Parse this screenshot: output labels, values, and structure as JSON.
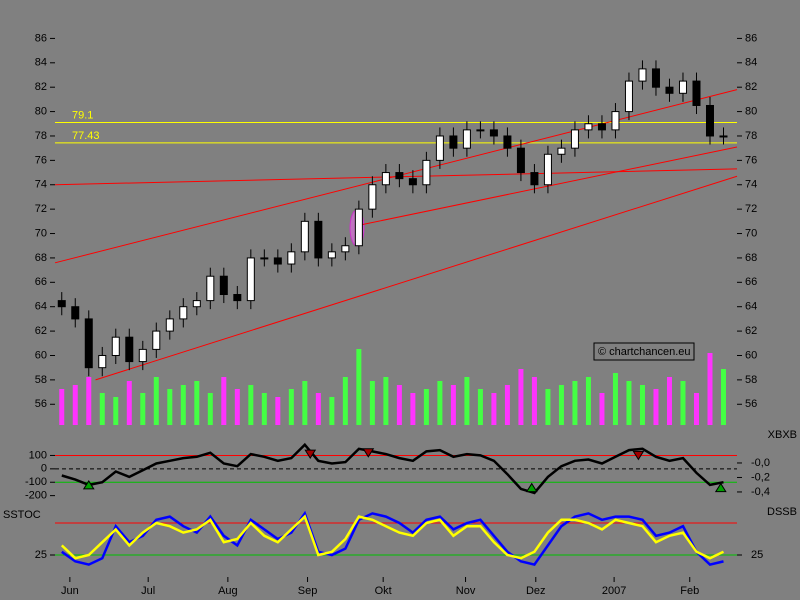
{
  "chart_data": [
    {
      "type": "candlestick",
      "xlim": [
        -0.5,
        50
      ],
      "xticks": [
        {
          "value": 0.6,
          "label": "Jun"
        },
        {
          "value": 6.4,
          "label": "Jul"
        },
        {
          "value": 12.3,
          "label": "Aug"
        },
        {
          "value": 18.2,
          "label": "Sep"
        },
        {
          "value": 23.8,
          "label": "Okt"
        },
        {
          "value": 29.9,
          "label": "Nov"
        },
        {
          "value": 35.1,
          "label": "Dez"
        },
        {
          "value": 40.9,
          "label": "2007"
        },
        {
          "value": 46.5,
          "label": "Feb"
        }
      ],
      "ylim": [
        54.3,
        87.1
      ],
      "yticks": [
        56,
        58,
        60,
        62,
        64,
        66,
        68,
        70,
        72,
        74,
        76,
        78,
        80,
        82,
        84,
        86
      ],
      "open": [
        64.5,
        64,
        63,
        59,
        60,
        61.5,
        59.5,
        60.5,
        62,
        63,
        64,
        64.5,
        66.5,
        65,
        64.5,
        68,
        68,
        67.5,
        68.5,
        71,
        68,
        68.5,
        69,
        72,
        74,
        75,
        74.5,
        74,
        76,
        78,
        77,
        78.5,
        78.5,
        78,
        77,
        75,
        74,
        76.5,
        77,
        78.5,
        79,
        78.5,
        80,
        82.5,
        83.5,
        82,
        81.5,
        82.5,
        80.5,
        78
      ],
      "high": [
        65.2,
        64.7,
        63.7,
        60.7,
        62.2,
        62.2,
        61.2,
        62.7,
        63.7,
        64.7,
        65.2,
        67.2,
        67.2,
        65.7,
        68.7,
        68.7,
        68.7,
        69.2,
        71.7,
        71.7,
        69.2,
        69.7,
        72.7,
        74.7,
        75.7,
        75.7,
        75.2,
        76.7,
        78.7,
        78.7,
        79.2,
        79.2,
        79.2,
        78.7,
        77.7,
        75.7,
        77.2,
        77.7,
        79.2,
        79.7,
        79.7,
        80.7,
        83.2,
        84.2,
        84.2,
        82.7,
        83.2,
        83.2,
        81.2,
        78.7
      ],
      "low": [
        63.3,
        62.3,
        58.3,
        58.3,
        59.3,
        58.8,
        58.8,
        59.8,
        61.3,
        62.3,
        63.3,
        63.8,
        64.3,
        63.8,
        63.8,
        67.3,
        66.8,
        66.8,
        67.8,
        67.3,
        67.3,
        67.8,
        68.3,
        71.3,
        73.3,
        73.8,
        73.3,
        73.3,
        75.3,
        76.3,
        76.3,
        77.8,
        77.3,
        76.3,
        74.3,
        73.3,
        73.3,
        75.8,
        76.3,
        77.8,
        77.8,
        77.8,
        79.3,
        81.8,
        81.3,
        80.8,
        80.8,
        79.8,
        77.3,
        77.3
      ],
      "close": [
        64,
        63,
        59,
        60,
        61.5,
        59.5,
        60.5,
        62,
        63,
        64,
        64.5,
        66.5,
        65,
        64.5,
        68,
        68,
        67.5,
        68.5,
        71,
        68,
        68.5,
        69,
        72,
        74,
        75,
        74.5,
        74,
        76,
        78,
        77,
        78.5,
        78.5,
        78,
        77,
        75,
        74,
        76.5,
        77,
        78.5,
        79,
        78.5,
        80,
        82.5,
        83.5,
        82,
        81.5,
        82.5,
        80.5,
        78,
        78
      ],
      "volume": [
        45,
        50,
        60,
        40,
        35,
        55,
        40,
        60,
        45,
        50,
        55,
        40,
        60,
        45,
        50,
        40,
        35,
        45,
        55,
        40,
        35,
        60,
        95,
        55,
        60,
        50,
        40,
        45,
        55,
        50,
        60,
        45,
        40,
        50,
        70,
        60,
        45,
        50,
        55,
        60,
        40,
        65,
        55,
        50,
        45,
        60,
        55,
        40,
        90,
        70
      ],
      "volume_lim": [
        0,
        500
      ],
      "up_color": "#ffffff",
      "down_color": "#000000",
      "volume_up_color": "#44ff44",
      "volume_down_color": "#ff33ff",
      "levels": [
        79.1,
        77.43
      ],
      "level_color": "#ffff00",
      "trendlines": [
        {
          "x": [
            -0.5,
            50
          ],
          "y": [
            67.6,
            81.8
          ]
        },
        {
          "x": [
            -0.5,
            50
          ],
          "y": [
            74.0,
            75.3
          ]
        },
        {
          "x": [
            2.5,
            50
          ],
          "y": [
            58.0,
            74.7
          ]
        },
        {
          "x": [
            22.1,
            50
          ],
          "y": [
            70.7,
            77.1
          ]
        }
      ],
      "trend_color": "#ff0000",
      "watermark": "© chartchancen.eu"
    },
    {
      "type": "line",
      "ylim": [
        -270,
        290
      ],
      "yticks": [
        100,
        0,
        -100,
        -200
      ],
      "y2lim": [
        -0.58,
        0.455
      ],
      "y2ticks": [
        {
          "value": 0,
          "label": "-0,0"
        },
        {
          "value": -0.2,
          "label": "-0,2"
        },
        {
          "value": -0.4,
          "label": "-0,4"
        }
      ],
      "y2label": "XBXB",
      "levels": [
        {
          "value": 100,
          "color": "#ff0000"
        },
        {
          "value": 0,
          "color": "#000000",
          "dash": true
        },
        {
          "value": -100,
          "color": "#00c000"
        }
      ],
      "series": [
        {
          "color": "#000000",
          "values": [
            -50,
            -80,
            -120,
            -100,
            -20,
            -60,
            -10,
            40,
            60,
            80,
            90,
            120,
            40,
            20,
            110,
            90,
            60,
            80,
            180,
            60,
            40,
            50,
            150,
            130,
            110,
            80,
            60,
            130,
            140,
            90,
            110,
            100,
            60,
            -40,
            -150,
            -180,
            -60,
            20,
            60,
            70,
            40,
            90,
            140,
            150,
            90,
            60,
            80,
            -30,
            -120,
            -100
          ]
        }
      ],
      "signals": [
        {
          "x": 2,
          "y": -150,
          "direction": "up"
        },
        {
          "x": 18.4,
          "y": 140,
          "direction": "down"
        },
        {
          "x": 22.7,
          "y": 150,
          "direction": "down"
        },
        {
          "x": 34.8,
          "y": -170,
          "direction": "up"
        },
        {
          "x": 42.7,
          "y": 130,
          "direction": "down"
        },
        {
          "x": 48.8,
          "y": -170,
          "direction": "up"
        }
      ]
    },
    {
      "type": "line",
      "ylim": [
        0,
        100
      ],
      "yticks": [
        25
      ],
      "y2lim": [
        0,
        100
      ],
      "y2ticks": [
        25
      ],
      "ylabel": "SSTOC",
      "y2label": "DSSB",
      "levels": [
        {
          "value": 75,
          "color": "#ff0000"
        },
        {
          "value": 25,
          "color": "#00c000"
        }
      ],
      "series": [
        {
          "color": "#0000ff",
          "values": [
            30,
            15,
            10,
            20,
            70,
            45,
            55,
            80,
            85,
            70,
            60,
            85,
            55,
            40,
            80,
            65,
            50,
            60,
            90,
            30,
            25,
            35,
            80,
            90,
            85,
            75,
            60,
            80,
            85,
            65,
            75,
            80,
            55,
            30,
            15,
            10,
            40,
            70,
            85,
            90,
            80,
            85,
            85,
            80,
            55,
            60,
            70,
            30,
            10,
            15
          ]
        },
        {
          "color": "#ffff00",
          "values": [
            40,
            20,
            25,
            45,
            65,
            40,
            60,
            75,
            70,
            60,
            65,
            80,
            45,
            50,
            75,
            55,
            45,
            65,
            85,
            25,
            30,
            50,
            85,
            80,
            70,
            60,
            55,
            75,
            80,
            55,
            70,
            70,
            45,
            25,
            20,
            30,
            60,
            80,
            80,
            75,
            65,
            80,
            75,
            70,
            45,
            55,
            60,
            30,
            20,
            30
          ]
        }
      ]
    }
  ]
}
